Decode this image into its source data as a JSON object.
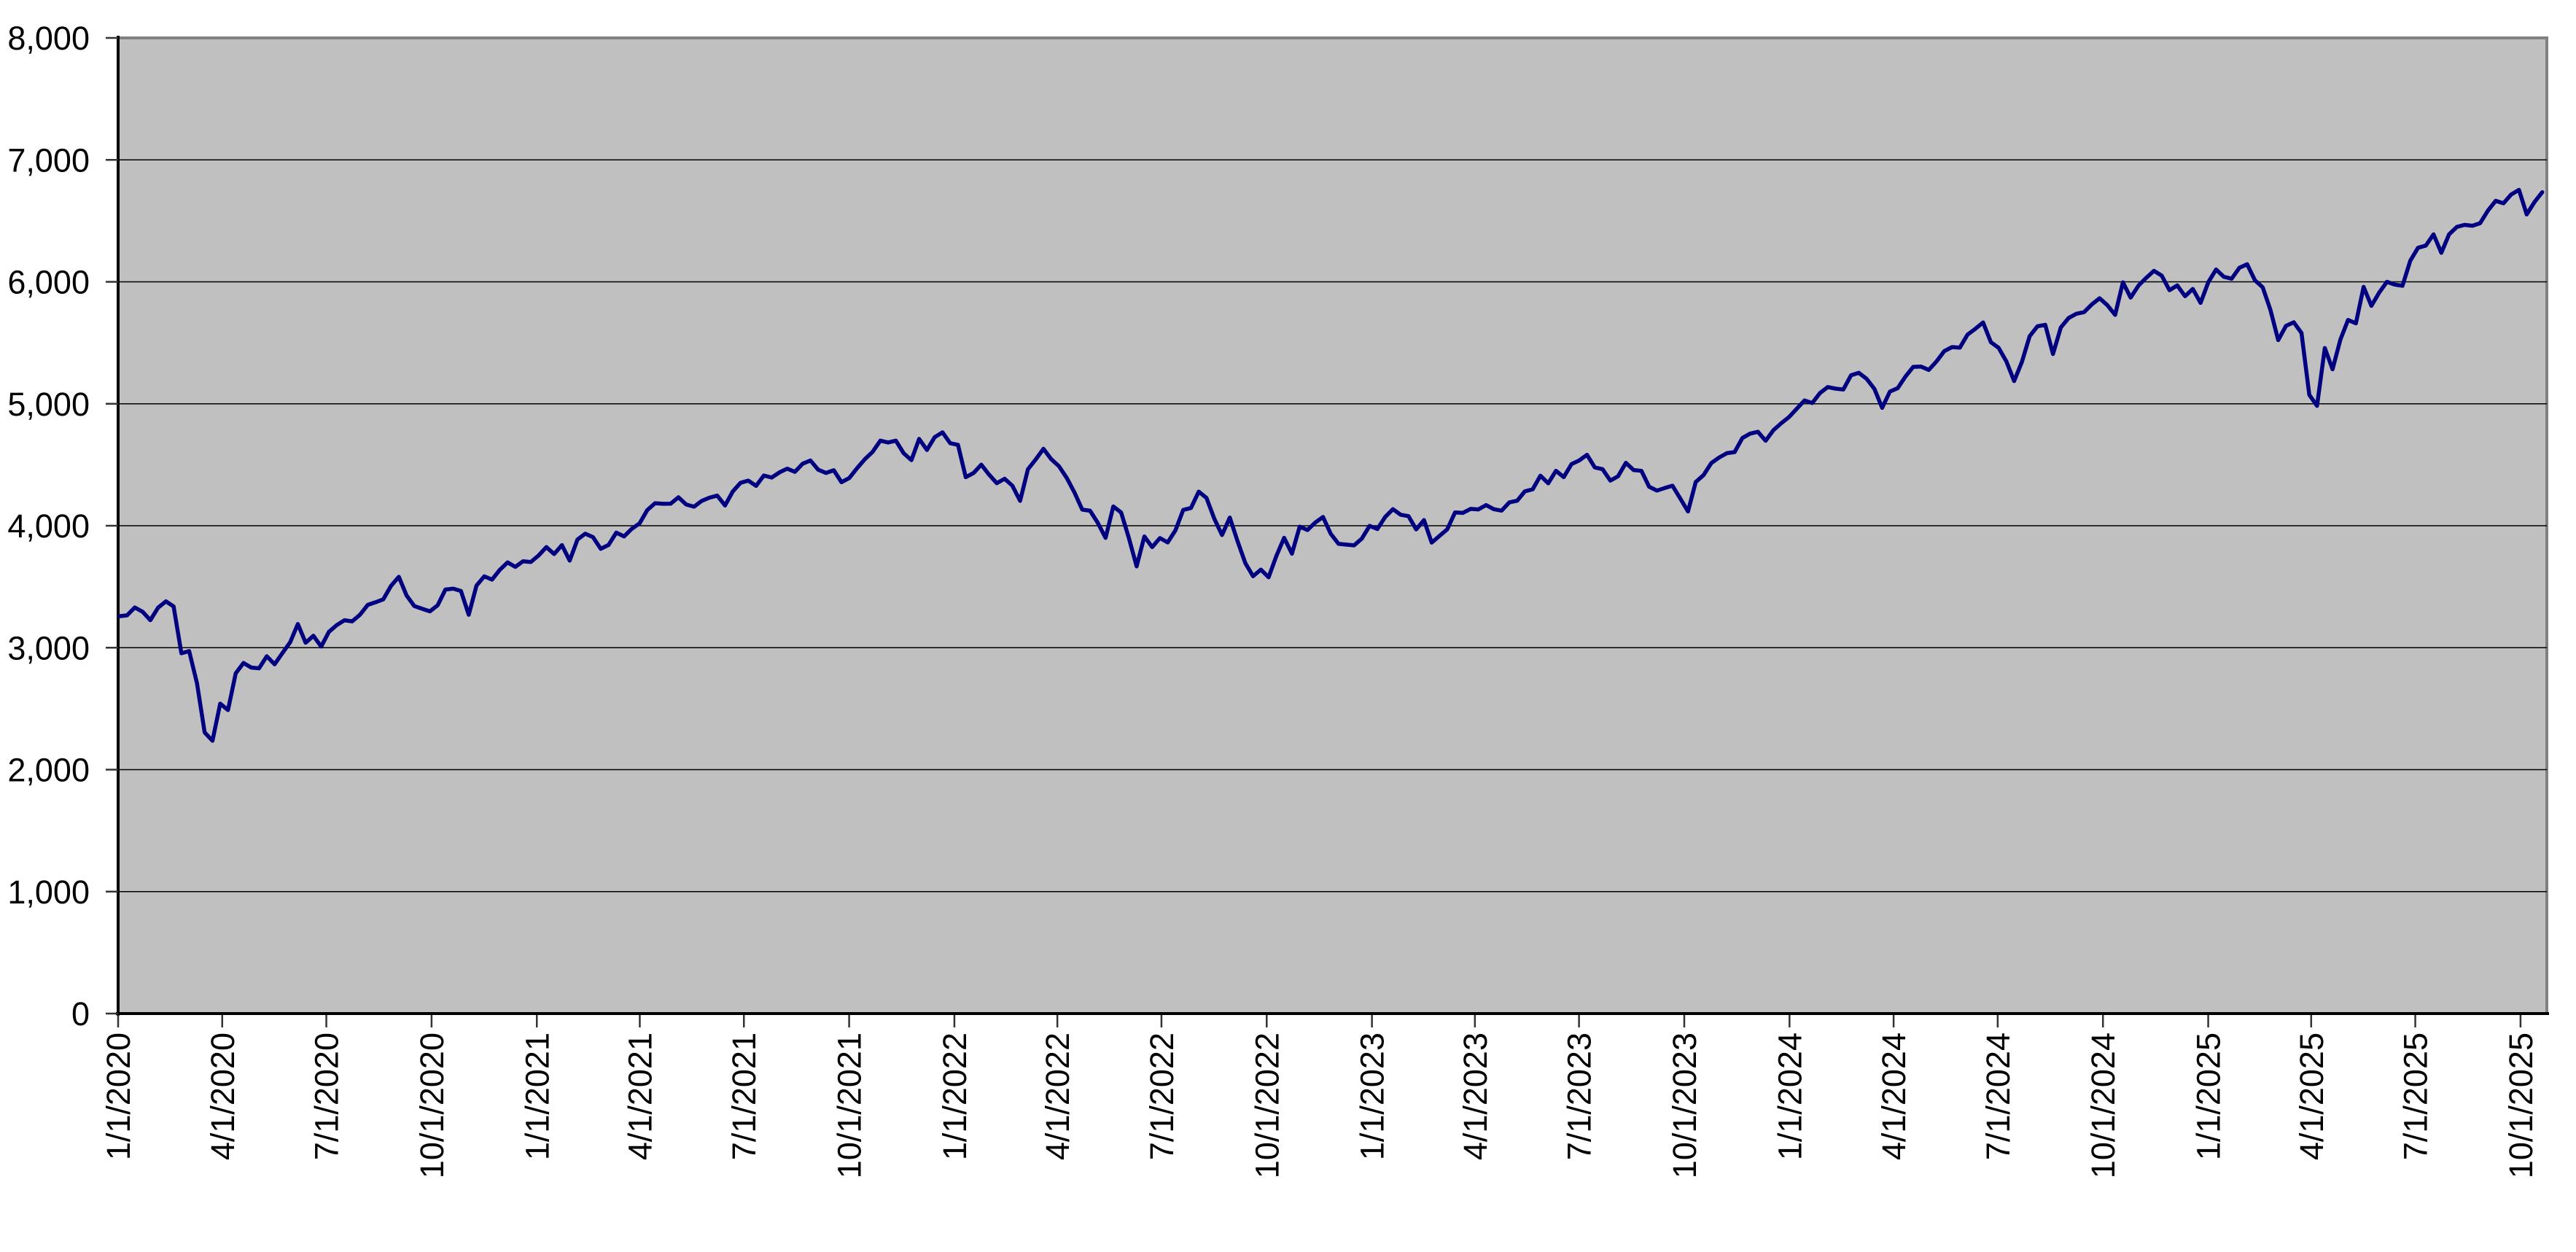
{
  "colors": {
    "page_bg": "#ffffff",
    "plot_bg": "#c0c0c0",
    "line": "#000080",
    "gridline": "#000000",
    "plot_border": "#808080",
    "axis": "#000000",
    "tick": "#333333"
  },
  "chart_data": {
    "type": "line",
    "title": "",
    "xlabel": "",
    "ylabel": "",
    "legend": "none",
    "grid": "horizontal",
    "ylim": [
      0,
      8000
    ],
    "y_tick_step": 1000,
    "y_ticks": [
      "0",
      "1,000",
      "2,000",
      "3,000",
      "4,000",
      "5,000",
      "6,000",
      "7,000",
      "8,000"
    ],
    "x_ticks": [
      "1/1/2020",
      "4/1/2020",
      "7/1/2020",
      "10/1/2020",
      "1/1/2021",
      "4/1/2021",
      "7/1/2021",
      "10/1/2021",
      "1/1/2022",
      "4/1/2022",
      "7/1/2022",
      "10/1/2022",
      "1/1/2023",
      "4/1/2023",
      "7/1/2023",
      "10/1/2023",
      "1/1/2024",
      "4/1/2024",
      "7/1/2024",
      "10/1/2024",
      "1/1/2025",
      "4/1/2025",
      "7/1/2025",
      "10/1/2025"
    ],
    "x_axis_min": "1/1/2020",
    "x_axis_max": "10/24/2025",
    "series": [
      {
        "color": "#000080",
        "sampling": "~weekly closes",
        "first_date": "1/2/2020",
        "last_date": "10/20/2025",
        "values": [
          3258,
          3265,
          3330,
          3295,
          3226,
          3328,
          3380,
          3338,
          2954,
          2972,
          2711,
          2305,
          2237,
          2541,
          2489,
          2790,
          2875,
          2837,
          2831,
          2930,
          2864,
          2955,
          3044,
          3194,
          3041,
          3098,
          3009,
          3130,
          3185,
          3225,
          3216,
          3271,
          3351,
          3373,
          3397,
          3508,
          3581,
          3427,
          3341,
          3319,
          3298,
          3348,
          3477,
          3484,
          3465,
          3270,
          3509,
          3585,
          3558,
          3638,
          3699,
          3663,
          3709,
          3703,
          3756,
          3825,
          3768,
          3841,
          3714,
          3887,
          3935,
          3907,
          3811,
          3842,
          3943,
          3913,
          3975,
          4020,
          4129,
          4185,
          4180,
          4181,
          4233,
          4174,
          4156,
          4204,
          4230,
          4247,
          4166,
          4281,
          4352,
          4370,
          4327,
          4412,
          4395,
          4437,
          4468,
          4442,
          4509,
          4535,
          4459,
          4433,
          4455,
          4357,
          4391,
          4471,
          4545,
          4605,
          4698,
          4683,
          4698,
          4595,
          4538,
          4712,
          4621,
          4726,
          4766,
          4677,
          4663,
          4398,
          4432,
          4501,
          4419,
          4349,
          4385,
          4329,
          4204,
          4463,
          4543,
          4631,
          4546,
          4488,
          4393,
          4272,
          4132,
          4123,
          4024,
          3901,
          4158,
          4109,
          3901,
          3667,
          3912,
          3825,
          3899,
          3863,
          3962,
          4130,
          4145,
          4280,
          4228,
          4058,
          3924,
          4067,
          3873,
          3693,
          3586,
          3640,
          3577,
          3753,
          3901,
          3771,
          3993,
          3965,
          4026,
          4072,
          3934,
          3852,
          3845,
          3839,
          3895,
          3999,
          3973,
          4071,
          4136,
          4090,
          4079,
          3970,
          4046,
          3862,
          3917,
          3971,
          4109,
          4105,
          4138,
          4134,
          4169,
          4136,
          4124,
          4192,
          4205,
          4282,
          4299,
          4410,
          4348,
          4450,
          4399,
          4505,
          4536,
          4582,
          4478,
          4464,
          4370,
          4406,
          4516,
          4457,
          4450,
          4320,
          4288,
          4309,
          4328,
          4224,
          4117,
          4358,
          4415,
          4514,
          4559,
          4595,
          4604,
          4719,
          4755,
          4770,
          4697,
          4784,
          4840,
          4891,
          4959,
          5027,
          5006,
          5089,
          5137,
          5124,
          5117,
          5234,
          5254,
          5204,
          5123,
          4967,
          5100,
          5128,
          5223,
          5303,
          5305,
          5278,
          5347,
          5432,
          5465,
          5460,
          5567,
          5615,
          5667,
          5505,
          5459,
          5347,
          5186,
          5344,
          5554,
          5635,
          5648,
          5408,
          5626,
          5703,
          5738,
          5751,
          5815,
          5865,
          5808,
          5729,
          5996,
          5871,
          5969,
          6032,
          6090,
          6051,
          5931,
          5971,
          5882,
          5942,
          5827,
          5997,
          6101,
          6041,
          6026,
          6115,
          6144,
          6013,
          5955,
          5770,
          5522,
          5639,
          5668,
          5581,
          5074,
          4983,
          5457,
          5283,
          5525,
          5687,
          5660,
          5958,
          5803,
          5912,
          6000,
          5977,
          5968,
          6173,
          6279,
          6297,
          6389,
          6238,
          6389,
          6450,
          6467,
          6460,
          6481,
          6584,
          6664,
          6644,
          6716,
          6754,
          6553,
          6654,
          6735
        ]
      }
    ]
  }
}
